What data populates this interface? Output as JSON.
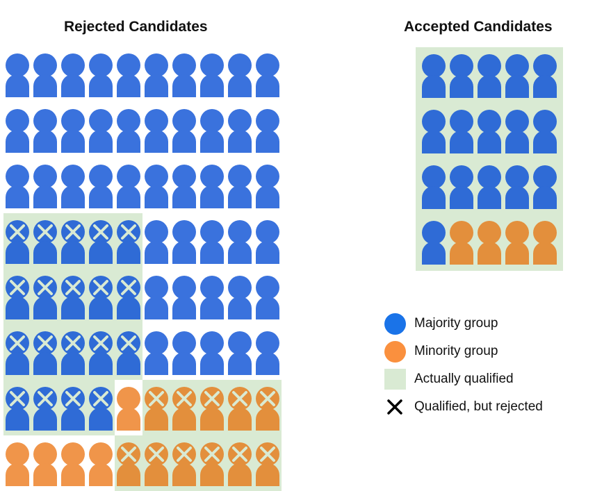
{
  "rejected": {
    "title": "Rejected Candidates",
    "rows": [
      [
        "B",
        "B",
        "B",
        "B",
        "B",
        "B",
        "B",
        "B",
        "B",
        "B"
      ],
      [
        "B",
        "B",
        "B",
        "B",
        "B",
        "B",
        "B",
        "B",
        "B",
        "B"
      ],
      [
        "B",
        "B",
        "B",
        "B",
        "B",
        "B",
        "B",
        "B",
        "B",
        "B"
      ],
      [
        "BX",
        "BX",
        "BX",
        "BX",
        "BX",
        "B",
        "B",
        "B",
        "B",
        "B"
      ],
      [
        "BX",
        "BX",
        "BX",
        "BX",
        "BX",
        "B",
        "B",
        "B",
        "B",
        "B"
      ],
      [
        "BX",
        "BX",
        "BX",
        "BX",
        "BX",
        "B",
        "B",
        "B",
        "B",
        "B"
      ],
      [
        "BX",
        "BX",
        "BX",
        "BX",
        "O",
        "OX",
        "OX",
        "OX",
        "OX",
        "OX"
      ],
      [
        "O",
        "O",
        "O",
        "O",
        "OX",
        "OX",
        "OX",
        "OX",
        "OX",
        "OX"
      ]
    ]
  },
  "accepted": {
    "title": "Accepted Candidates",
    "rows": [
      [
        "BQ",
        "BQ",
        "BQ",
        "BQ",
        "BQ"
      ],
      [
        "BQ",
        "BQ",
        "BQ",
        "BQ",
        "BQ"
      ],
      [
        "BQ",
        "BQ",
        "BQ",
        "BQ",
        "BQ"
      ],
      [
        "BQ",
        "OQ",
        "OQ",
        "OQ",
        "OQ"
      ]
    ]
  },
  "legend": [
    {
      "label": "Majority group",
      "icon": "blue-circle",
      "color": "#1a73e8"
    },
    {
      "label": "Minority group",
      "icon": "orange-circle",
      "color": "#fa903e"
    },
    {
      "label": "Actually qualified",
      "icon": "green-square",
      "color": "#d9ead3"
    },
    {
      "label": "Qualified, but rejected",
      "icon": "x-mark",
      "color": "#000000"
    }
  ],
  "colors": {
    "majority": "#3a72dd",
    "majority_qualified": "#2f6bd6",
    "minority": "#f0954a",
    "minority_qualified": "#e38f3c",
    "qualified_bg": "#d9ead3",
    "x_mark": "#d9ead3"
  }
}
